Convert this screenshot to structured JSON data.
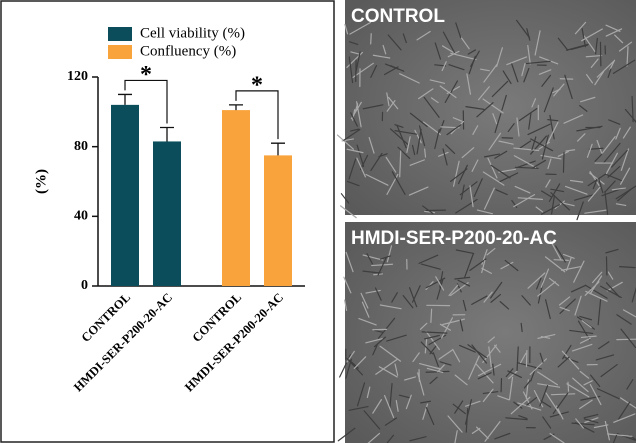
{
  "chart_data": {
    "type": "bar",
    "ylabel": "(%)",
    "categories": [
      "CONTROL",
      "HMDI-SER-P200-20-AC"
    ],
    "series": [
      {
        "name": "Cell viability (%)",
        "color": "#0b4d5b",
        "values": [
          104,
          83
        ],
        "errors": [
          6,
          8
        ]
      },
      {
        "name": "Confluency (%)",
        "color": "#f9a33d",
        "values": [
          101,
          75
        ],
        "errors": [
          3,
          7
        ]
      }
    ],
    "annotations": [
      "*",
      "*"
    ],
    "ylim": [
      0,
      120
    ],
    "yticks": [
      0,
      40,
      80,
      120
    ]
  },
  "images": [
    {
      "label": "CONTROL"
    },
    {
      "label": "HMDI-SER-P200-20-AC"
    }
  ]
}
